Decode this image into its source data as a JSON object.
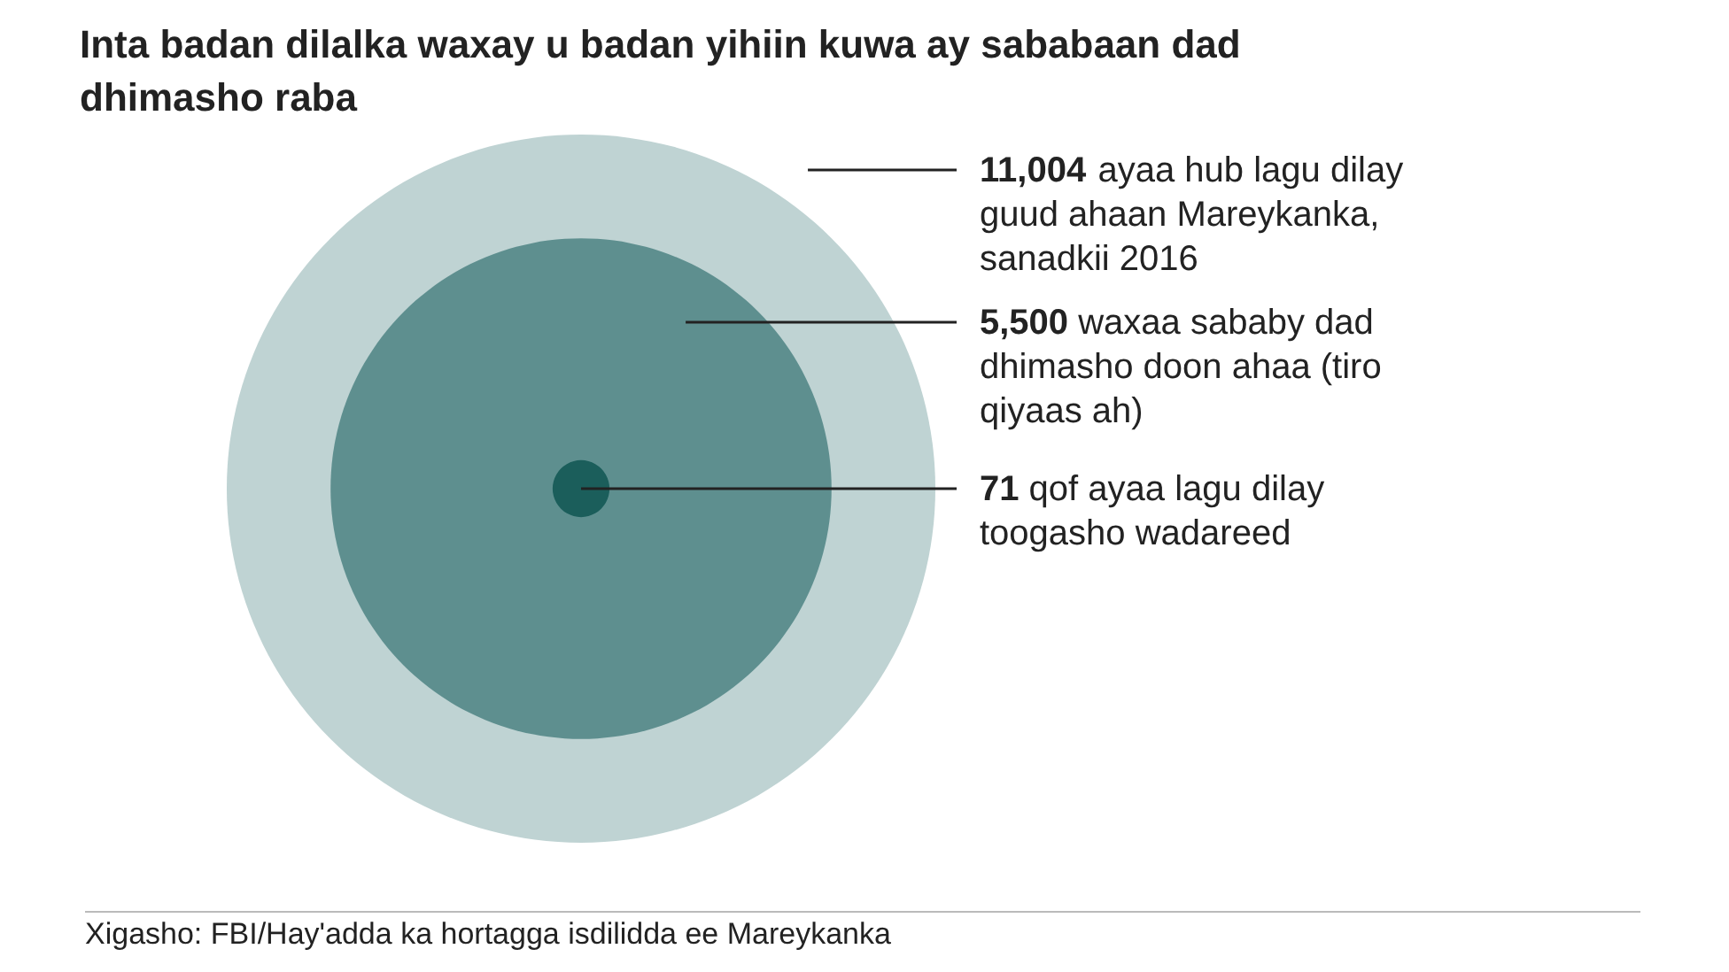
{
  "chart_data": {
    "type": "other",
    "title": "Inta badan dilalka waxay u badan yihiin kuwa ay sababaan dad dhimasho raba",
    "categories": [
      "ayaa hub lagu dilay guud ahaan Mareykanka, sanadkii 2016",
      "waxaa sababy dad dhimasho doon ahaa (tiro qiyaas ah)",
      "qof ayaa lagu dilay toogasho wadareed"
    ],
    "values": [
      11004,
      5500,
      71
    ],
    "value_labels": [
      "11,004",
      "5,500",
      "71"
    ],
    "colors": [
      "#bfd3d3",
      "#5e8f8f",
      "#1b5e5b"
    ],
    "annotations": [
      "Xigasho: FBI/Hay'adda ka hortagga isdilidda ee Mareykanka"
    ]
  }
}
